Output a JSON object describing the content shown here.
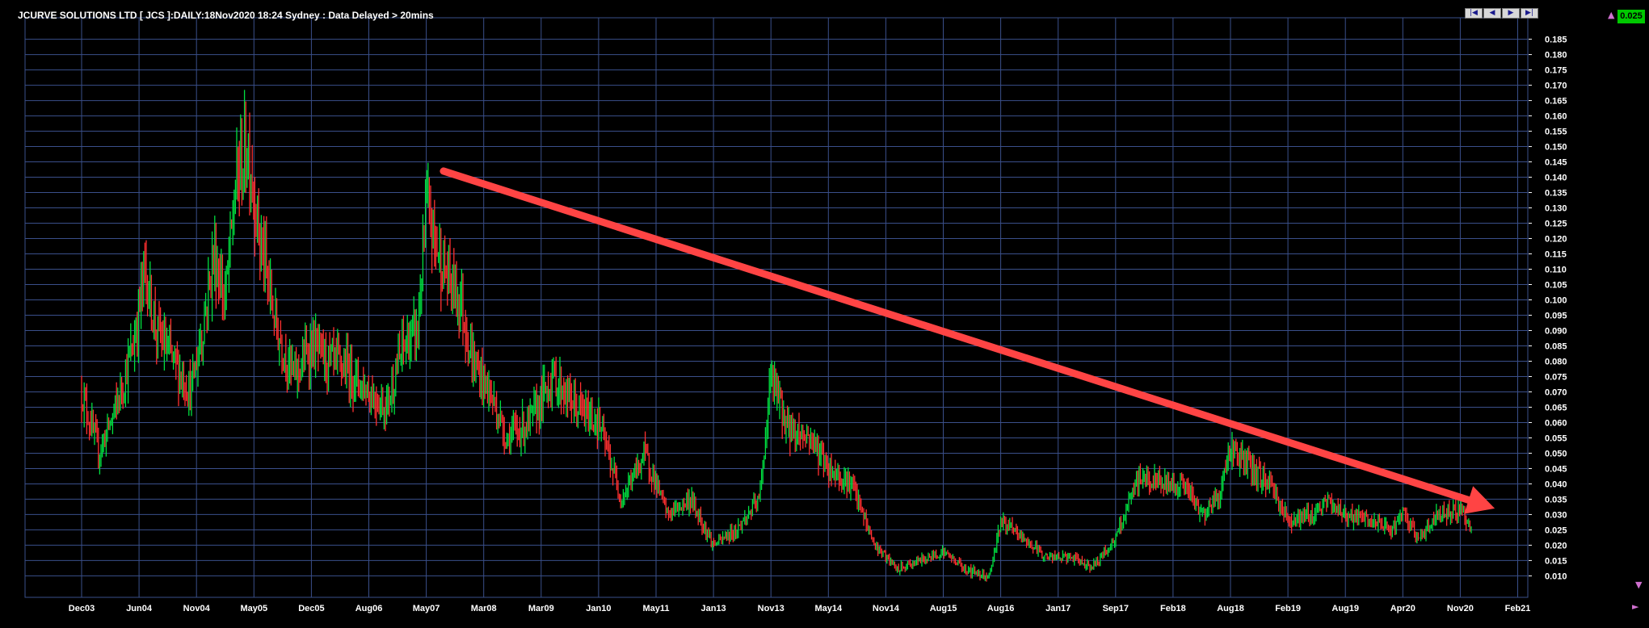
{
  "header": {
    "title": "JCURVE SOLUTIONS LTD [ JCS ]:DAILY:18Nov2020 18:24 Sydney : Data Delayed > 20mins"
  },
  "nav": {
    "first_icon": "skip-first-icon",
    "prev_icon": "step-back-icon",
    "next_icon": "step-forward-icon",
    "last_icon": "skip-last-icon"
  },
  "price_badge": {
    "value": "0.025",
    "color": "#00c800"
  },
  "colors": {
    "background": "#000000",
    "grid": "#3a4f8a",
    "up": "#00e040",
    "down": "#ff3030",
    "trend_arrow": "#ff4444",
    "text": "#ffffff"
  },
  "chart_data": {
    "type": "bar",
    "subtype": "daily-ohlc-price-bars",
    "title": "",
    "xlabel": "",
    "ylabel": "",
    "x_tick_labels": [
      "Dec03",
      "Jun04",
      "Nov04",
      "May05",
      "Dec05",
      "Aug06",
      "May07",
      "Mar08",
      "Mar09",
      "Jan10",
      "May11",
      "Jan13",
      "Nov13",
      "May14",
      "Nov14",
      "Aug15",
      "Aug16",
      "Jan17",
      "Sep17",
      "Feb18",
      "Aug18",
      "Feb19",
      "Aug19",
      "Apr20",
      "Nov20",
      "Feb21"
    ],
    "y_tick_labels": [
      "0.185",
      "0.180",
      "0.175",
      "0.170",
      "0.165",
      "0.160",
      "0.155",
      "0.150",
      "0.145",
      "0.140",
      "0.135",
      "0.130",
      "0.125",
      "0.120",
      "0.115",
      "0.110",
      "0.105",
      "0.100",
      "0.095",
      "0.090",
      "0.085",
      "0.080",
      "0.075",
      "0.070",
      "0.065",
      "0.060",
      "0.055",
      "0.050",
      "0.045",
      "0.040",
      "0.035",
      "0.030",
      "0.025",
      "0.020",
      "0.015",
      "0.010"
    ],
    "ylim": [
      0.003,
      0.192
    ],
    "y_axis_side": "right",
    "grid": true,
    "legend": "none",
    "x_range_index": [
      0,
      25
    ],
    "price_path": [
      {
        "x": 0.0,
        "y": 0.07
      },
      {
        "x": 0.3,
        "y": 0.05
      },
      {
        "x": 0.6,
        "y": 0.065
      },
      {
        "x": 0.9,
        "y": 0.085
      },
      {
        "x": 1.1,
        "y": 0.11
      },
      {
        "x": 1.3,
        "y": 0.09
      },
      {
        "x": 1.6,
        "y": 0.08
      },
      {
        "x": 1.9,
        "y": 0.07
      },
      {
        "x": 2.1,
        "y": 0.09
      },
      {
        "x": 2.3,
        "y": 0.115
      },
      {
        "x": 2.5,
        "y": 0.1
      },
      {
        "x": 2.7,
        "y": 0.14
      },
      {
        "x": 2.9,
        "y": 0.15
      },
      {
        "x": 3.1,
        "y": 0.12
      },
      {
        "x": 3.4,
        "y": 0.09
      },
      {
        "x": 3.7,
        "y": 0.075
      },
      {
        "x": 4.0,
        "y": 0.085
      },
      {
        "x": 4.3,
        "y": 0.08
      },
      {
        "x": 4.6,
        "y": 0.078
      },
      {
        "x": 5.0,
        "y": 0.07
      },
      {
        "x": 5.3,
        "y": 0.065
      },
      {
        "x": 5.6,
        "y": 0.085
      },
      {
        "x": 5.85,
        "y": 0.09
      },
      {
        "x": 6.0,
        "y": 0.13
      },
      {
        "x": 6.3,
        "y": 0.11
      },
      {
        "x": 6.6,
        "y": 0.1
      },
      {
        "x": 6.8,
        "y": 0.08
      },
      {
        "x": 7.1,
        "y": 0.07
      },
      {
        "x": 7.4,
        "y": 0.055
      },
      {
        "x": 7.8,
        "y": 0.06
      },
      {
        "x": 8.2,
        "y": 0.075
      },
      {
        "x": 8.6,
        "y": 0.065
      },
      {
        "x": 9.0,
        "y": 0.06
      },
      {
        "x": 9.4,
        "y": 0.035
      },
      {
        "x": 9.8,
        "y": 0.05
      },
      {
        "x": 10.2,
        "y": 0.03
      },
      {
        "x": 10.6,
        "y": 0.035
      },
      {
        "x": 11.0,
        "y": 0.02
      },
      {
        "x": 11.4,
        "y": 0.025
      },
      {
        "x": 11.8,
        "y": 0.035
      },
      {
        "x": 12.0,
        "y": 0.075
      },
      {
        "x": 12.3,
        "y": 0.058
      },
      {
        "x": 12.7,
        "y": 0.055
      },
      {
        "x": 13.0,
        "y": 0.045
      },
      {
        "x": 13.4,
        "y": 0.04
      },
      {
        "x": 13.8,
        "y": 0.02
      },
      {
        "x": 14.2,
        "y": 0.012
      },
      {
        "x": 14.6,
        "y": 0.015
      },
      {
        "x": 15.0,
        "y": 0.018
      },
      {
        "x": 15.4,
        "y": 0.012
      },
      {
        "x": 15.8,
        "y": 0.01
      },
      {
        "x": 16.0,
        "y": 0.028
      },
      {
        "x": 16.4,
        "y": 0.022
      },
      {
        "x": 16.8,
        "y": 0.016
      },
      {
        "x": 17.2,
        "y": 0.016
      },
      {
        "x": 17.6,
        "y": 0.013
      },
      {
        "x": 18.0,
        "y": 0.022
      },
      {
        "x": 18.4,
        "y": 0.042
      },
      {
        "x": 18.8,
        "y": 0.04
      },
      {
        "x": 19.2,
        "y": 0.04
      },
      {
        "x": 19.5,
        "y": 0.03
      },
      {
        "x": 19.8,
        "y": 0.036
      },
      {
        "x": 20.0,
        "y": 0.052
      },
      {
        "x": 20.4,
        "y": 0.044
      },
      {
        "x": 20.7,
        "y": 0.04
      },
      {
        "x": 21.0,
        "y": 0.028
      },
      {
        "x": 21.4,
        "y": 0.03
      },
      {
        "x": 21.7,
        "y": 0.034
      },
      {
        "x": 22.0,
        "y": 0.03
      },
      {
        "x": 22.4,
        "y": 0.028
      },
      {
        "x": 22.8,
        "y": 0.025
      },
      {
        "x": 23.0,
        "y": 0.03
      },
      {
        "x": 23.3,
        "y": 0.022
      },
      {
        "x": 23.6,
        "y": 0.03
      },
      {
        "x": 24.0,
        "y": 0.032
      },
      {
        "x": 24.2,
        "y": 0.025
      }
    ],
    "annotations": [
      {
        "type": "trend-arrow",
        "description": "downtrend",
        "from": {
          "x": 6.3,
          "y": 0.142
        },
        "to": {
          "x": 24.6,
          "y": 0.032
        }
      }
    ]
  }
}
